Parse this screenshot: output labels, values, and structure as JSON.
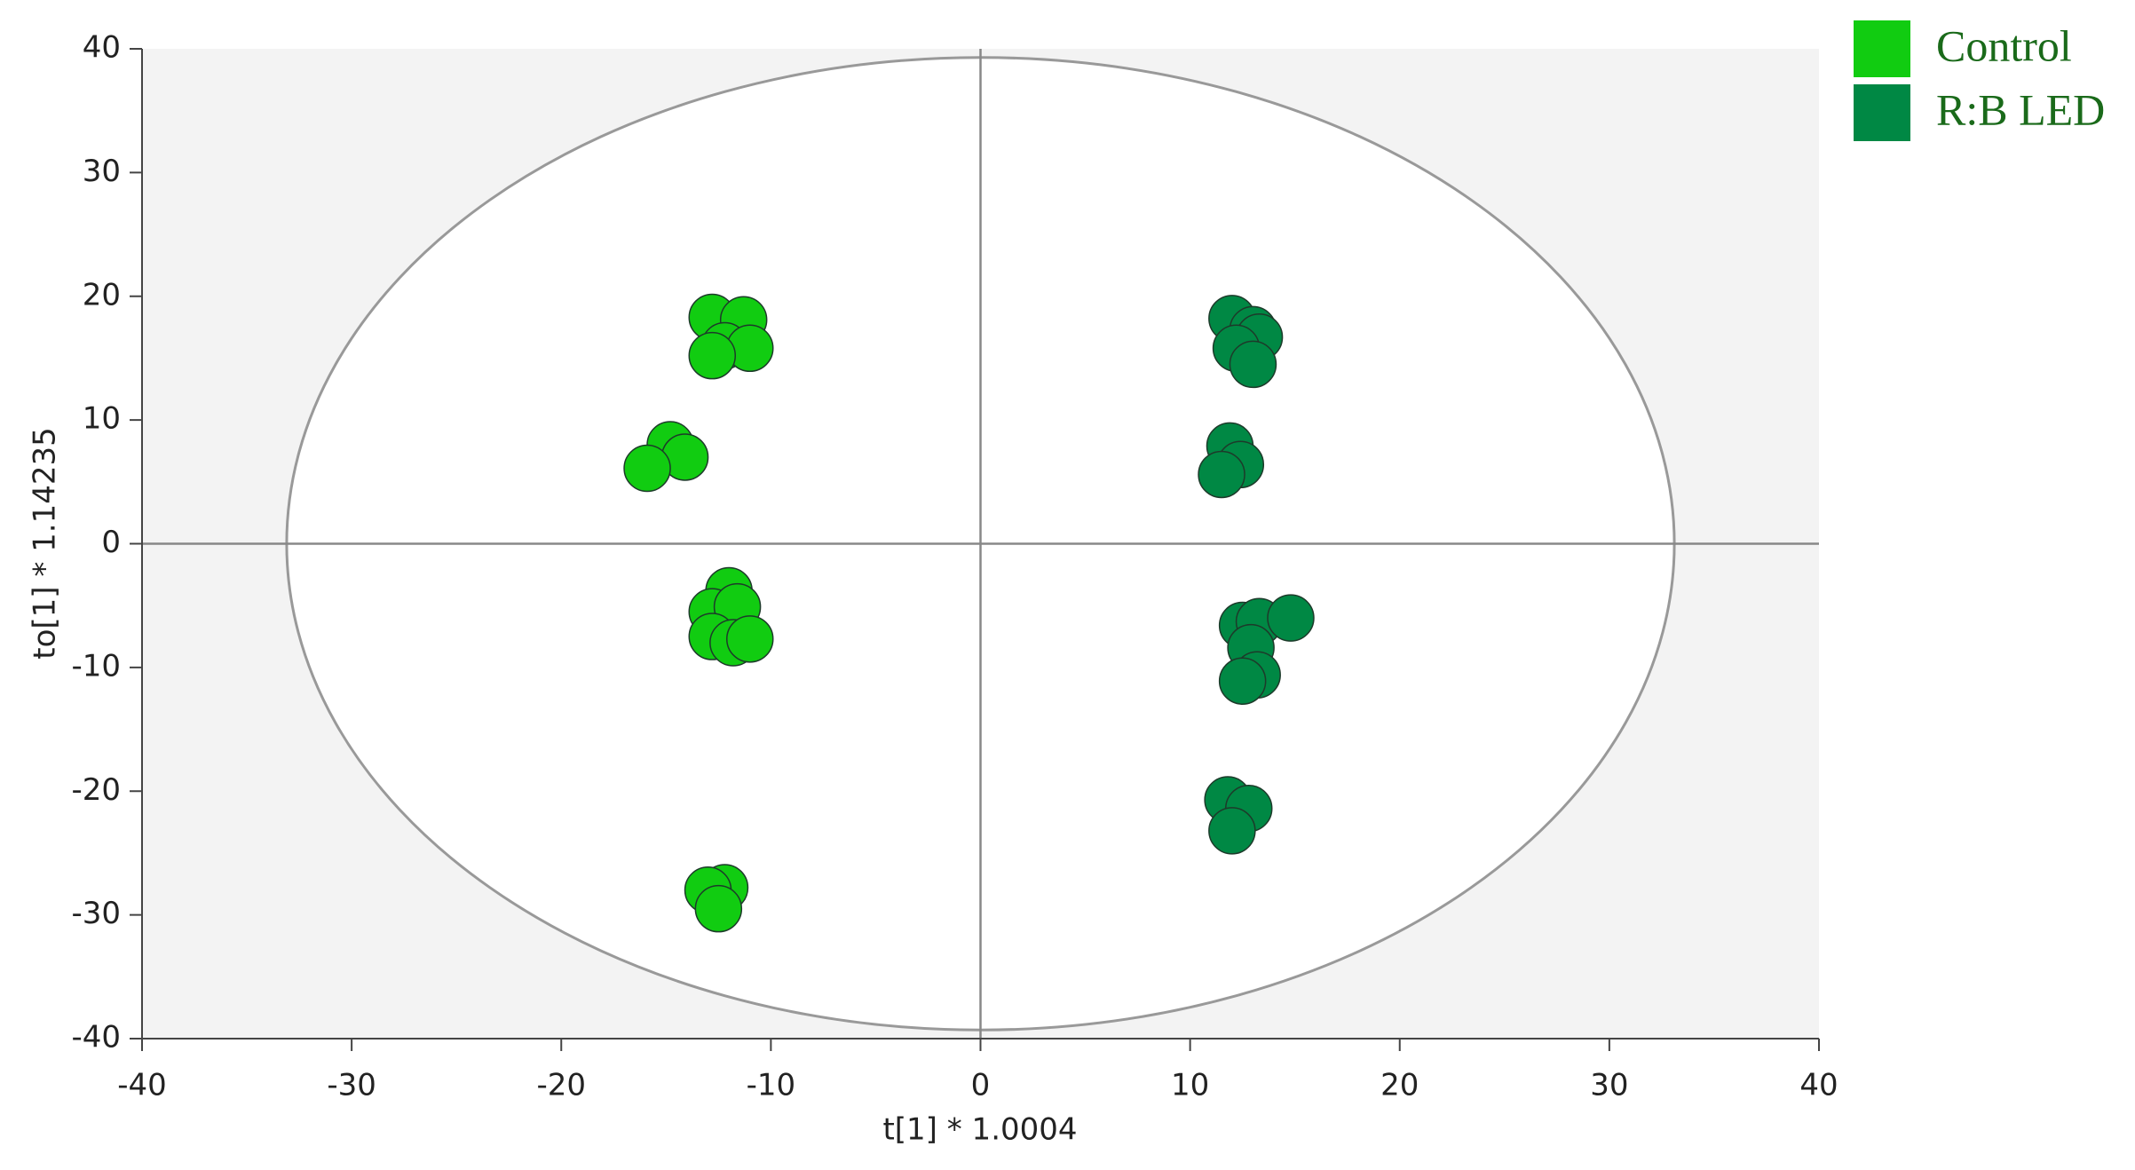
{
  "chart_data": {
    "type": "scatter",
    "xlabel": "t[1] * 1.0004",
    "ylabel": "to[1] * 1.14235",
    "xlim": [
      -40,
      40
    ],
    "ylim": [
      -40,
      40
    ],
    "xticks": [
      -40,
      -30,
      -20,
      -10,
      0,
      10,
      20,
      30,
      40
    ],
    "yticks": [
      -40,
      -30,
      -20,
      -10,
      0,
      10,
      20,
      30,
      40
    ],
    "ellipse": {
      "rx": 33.1,
      "ry": 39.3
    },
    "legend": "outside-top-right",
    "series": [
      {
        "name": "Control",
        "color": "#11cc11",
        "x": [
          -12.8,
          -11.3,
          -12.2,
          -11.0,
          -12.8,
          -14.8,
          -14.1,
          -15.9,
          -12.0,
          -12.8,
          -11.6,
          -12.8,
          -11.8,
          -11.0,
          -12.2,
          -13.0,
          -12.5
        ],
        "y": [
          18.3,
          18.1,
          16.0,
          15.8,
          15.2,
          8.0,
          7.0,
          6.1,
          -3.8,
          -5.5,
          -5.1,
          -7.5,
          -8.0,
          -7.7,
          -27.8,
          -28.0,
          -29.5
        ]
      },
      {
        "name": "R:B LED",
        "color": "#008844",
        "x": [
          12.0,
          13.0,
          13.3,
          12.2,
          13.0,
          11.9,
          12.4,
          11.5,
          12.5,
          13.3,
          14.8,
          12.9,
          13.2,
          12.5,
          11.8,
          12.8,
          12.0
        ],
        "y": [
          18.2,
          17.3,
          16.7,
          15.8,
          14.5,
          7.9,
          6.4,
          5.6,
          -6.6,
          -6.3,
          -6.0,
          -8.4,
          -10.6,
          -11.1,
          -20.7,
          -21.4,
          -23.2
        ]
      }
    ]
  }
}
